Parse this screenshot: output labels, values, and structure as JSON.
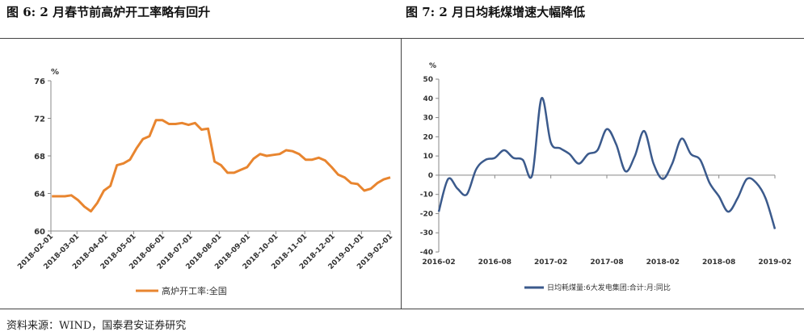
{
  "titles": {
    "left": "图 6:  2 月春节前高炉开工率略有回升",
    "right": "图 7:    2 月日均耗煤增速大幅降低"
  },
  "source": "资料来源：WIND，国泰君安证券研究",
  "colors": {
    "left_series": "#E8852F",
    "right_series": "#3B5A8C",
    "axis": "#888888"
  },
  "chart_data": [
    {
      "type": "line",
      "ylabel": "%",
      "ylim": [
        60,
        76
      ],
      "yticks": [
        60,
        64,
        68,
        72,
        76
      ],
      "xlim": [
        "2018-02-01",
        "2019-02-01"
      ],
      "xticks": [
        "2018-02-01",
        "2018-03-01",
        "2018-04-01",
        "2018-05-01",
        "2018-06-01",
        "2018-07-01",
        "2018-08-01",
        "2018-09-01",
        "2018-10-01",
        "2018-11-01",
        "2018-12-01",
        "2019-01-01",
        "2019-02-01"
      ],
      "legend": "bottom",
      "series": [
        {
          "name": "高炉开工率:全国",
          "x": [
            "2018-02-02",
            "2018-02-09",
            "2018-02-16",
            "2018-02-23",
            "2018-03-02",
            "2018-03-09",
            "2018-03-16",
            "2018-03-23",
            "2018-03-30",
            "2018-04-06",
            "2018-04-13",
            "2018-04-20",
            "2018-04-27",
            "2018-05-04",
            "2018-05-11",
            "2018-05-18",
            "2018-05-25",
            "2018-06-01",
            "2018-06-08",
            "2018-06-15",
            "2018-06-22",
            "2018-06-29",
            "2018-07-06",
            "2018-07-13",
            "2018-07-20",
            "2018-07-27",
            "2018-08-03",
            "2018-08-10",
            "2018-08-17",
            "2018-08-24",
            "2018-08-31",
            "2018-09-07",
            "2018-09-14",
            "2018-09-21",
            "2018-09-28",
            "2018-10-05",
            "2018-10-12",
            "2018-10-19",
            "2018-10-26",
            "2018-11-02",
            "2018-11-09",
            "2018-11-16",
            "2018-11-23",
            "2018-11-30",
            "2018-12-07",
            "2018-12-14",
            "2018-12-21",
            "2018-12-28",
            "2019-01-04",
            "2019-01-11",
            "2019-01-18",
            "2019-01-25",
            "2019-02-01"
          ],
          "values": [
            63.7,
            63.7,
            63.7,
            63.8,
            63.3,
            62.6,
            62.1,
            63.0,
            64.3,
            64.8,
            67.0,
            67.2,
            67.6,
            68.8,
            69.8,
            70.1,
            71.8,
            71.8,
            71.4,
            71.4,
            71.5,
            71.3,
            71.5,
            70.8,
            70.9,
            67.4,
            67.0,
            66.2,
            66.2,
            66.5,
            66.8,
            67.7,
            68.2,
            68.0,
            68.1,
            68.2,
            68.6,
            68.5,
            68.2,
            67.6,
            67.6,
            67.8,
            67.5,
            66.8,
            66.0,
            65.7,
            65.1,
            65.0,
            64.3,
            64.5,
            65.1,
            65.5,
            65.7
          ]
        }
      ]
    },
    {
      "type": "line",
      "ylabel": "%",
      "ylim": [
        -40,
        50
      ],
      "yticks": [
        -40,
        -30,
        -20,
        -10,
        0,
        10,
        20,
        30,
        40,
        50
      ],
      "xlim": [
        "2016-02",
        "2019-02"
      ],
      "xticks": [
        "2016-02",
        "2016-08",
        "2017-02",
        "2017-08",
        "2018-02",
        "2018-08",
        "2019-02"
      ],
      "legend": "bottom",
      "series": [
        {
          "name": "日均耗煤量:6大发电集团:合计:月:同比",
          "x": [
            "2016-02",
            "2016-03",
            "2016-04",
            "2016-05",
            "2016-06",
            "2016-07",
            "2016-08",
            "2016-09",
            "2016-10",
            "2016-11",
            "2016-12",
            "2017-01",
            "2017-02",
            "2017-03",
            "2017-04",
            "2017-05",
            "2017-06",
            "2017-07",
            "2017-08",
            "2017-09",
            "2017-10",
            "2017-11",
            "2017-12",
            "2018-01",
            "2018-02",
            "2018-03",
            "2018-04",
            "2018-05",
            "2018-06",
            "2018-07",
            "2018-08",
            "2018-09",
            "2018-10",
            "2018-11",
            "2018-12",
            "2019-01",
            "2019-02"
          ],
          "values": [
            -19,
            -2,
            -7,
            -10,
            3,
            8,
            9,
            13,
            9,
            8,
            0,
            40,
            17,
            14,
            11,
            6,
            11,
            13,
            24,
            16,
            2,
            10,
            23,
            6,
            -2,
            6,
            19,
            11,
            8,
            -4,
            -11,
            -19,
            -12,
            -2,
            -4,
            -12,
            -28
          ]
        }
      ]
    }
  ]
}
